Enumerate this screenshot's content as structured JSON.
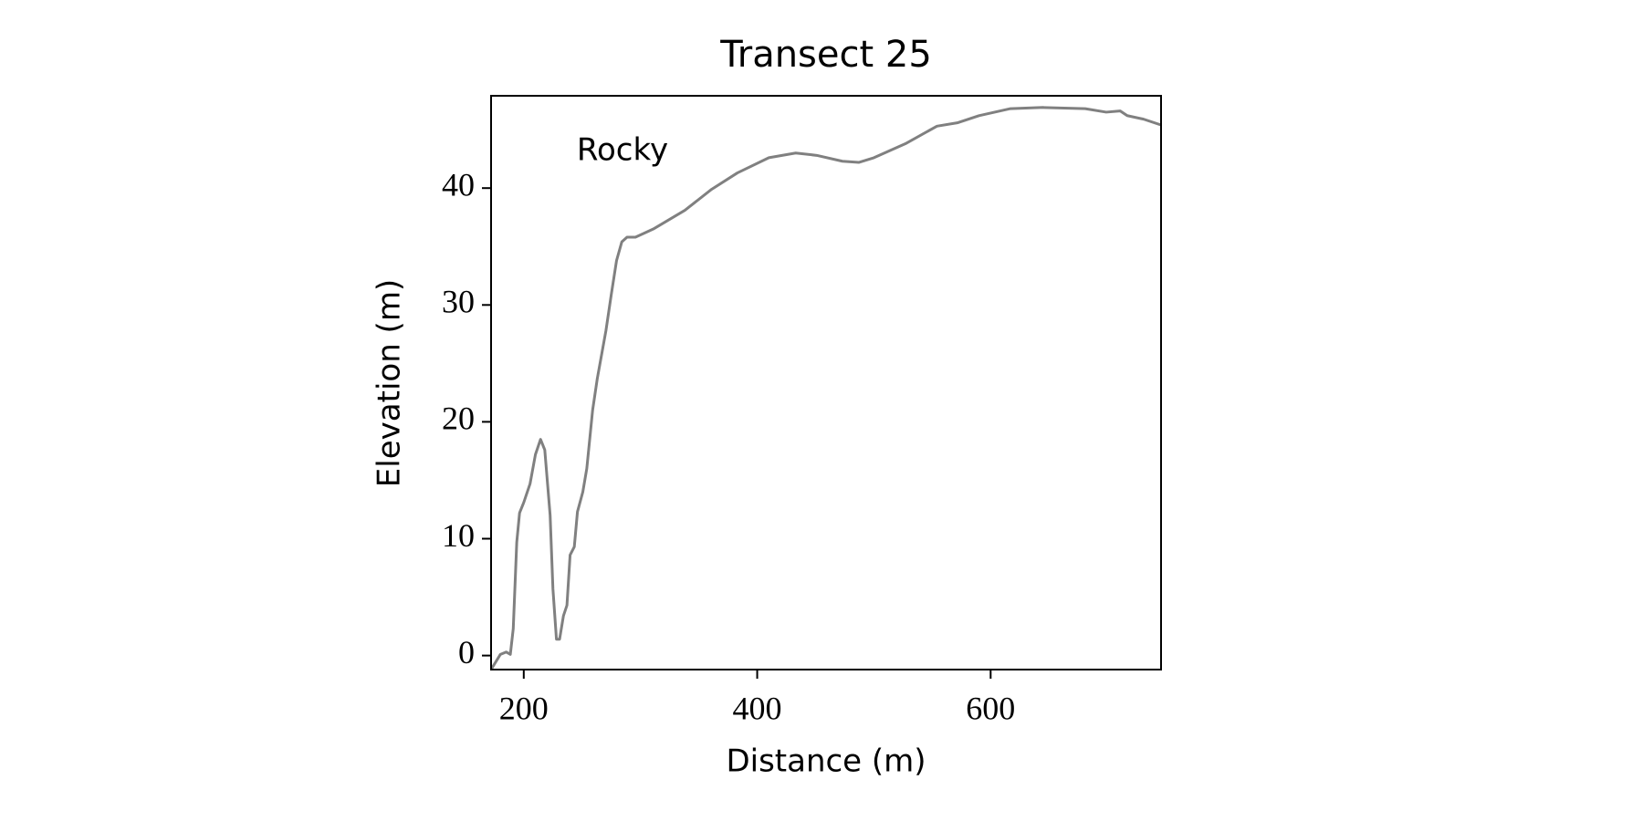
{
  "chart_data": {
    "type": "line",
    "title": "Transect 25",
    "xlabel": "Distance (m)",
    "ylabel": "Elevation (m)",
    "annotation": "Rocky",
    "x": [
      172,
      180,
      185,
      188.5,
      191,
      194,
      196.4,
      200,
      205.4,
      210,
      214.4,
      218,
      222.6,
      225,
      228,
      230.7,
      234,
      237,
      239.7,
      243.3,
      246,
      250.6,
      254,
      259,
      263,
      270.4,
      275,
      279.5,
      284,
      288.5,
      295.7,
      311,
      338,
      361,
      383,
      410,
      433,
      451,
      473,
      487,
      500,
      527,
      554,
      572,
      590,
      617,
      645,
      681,
      699,
      711,
      717,
      731,
      746
    ],
    "series": [
      {
        "name": "Transect 25",
        "color": "#808080",
        "values": [
          -1.2,
          0.1,
          0.3,
          0.1,
          2.3,
          9.7,
          12.2,
          13.1,
          14.7,
          17.2,
          18.5,
          17.6,
          12,
          5.7,
          1.4,
          1.4,
          3.4,
          4.3,
          8.6,
          9.3,
          12.3,
          14,
          16,
          21,
          23.7,
          27.8,
          30.9,
          33.8,
          35.4,
          35.8,
          35.8,
          36.5,
          38.1,
          39.9,
          41.3,
          42.6,
          43.0,
          42.8,
          42.3,
          42.2,
          42.6,
          43.8,
          45.3,
          45.6,
          46.2,
          46.8,
          46.9,
          46.8,
          46.5,
          46.6,
          46.2,
          45.9,
          45.4
        ]
      }
    ],
    "xlim": [
      172,
      746
    ],
    "ylim": [
      -1.2,
      47.9
    ],
    "xticks": [
      200,
      400,
      600
    ],
    "yticks": [
      0,
      10,
      20,
      30,
      40
    ]
  }
}
